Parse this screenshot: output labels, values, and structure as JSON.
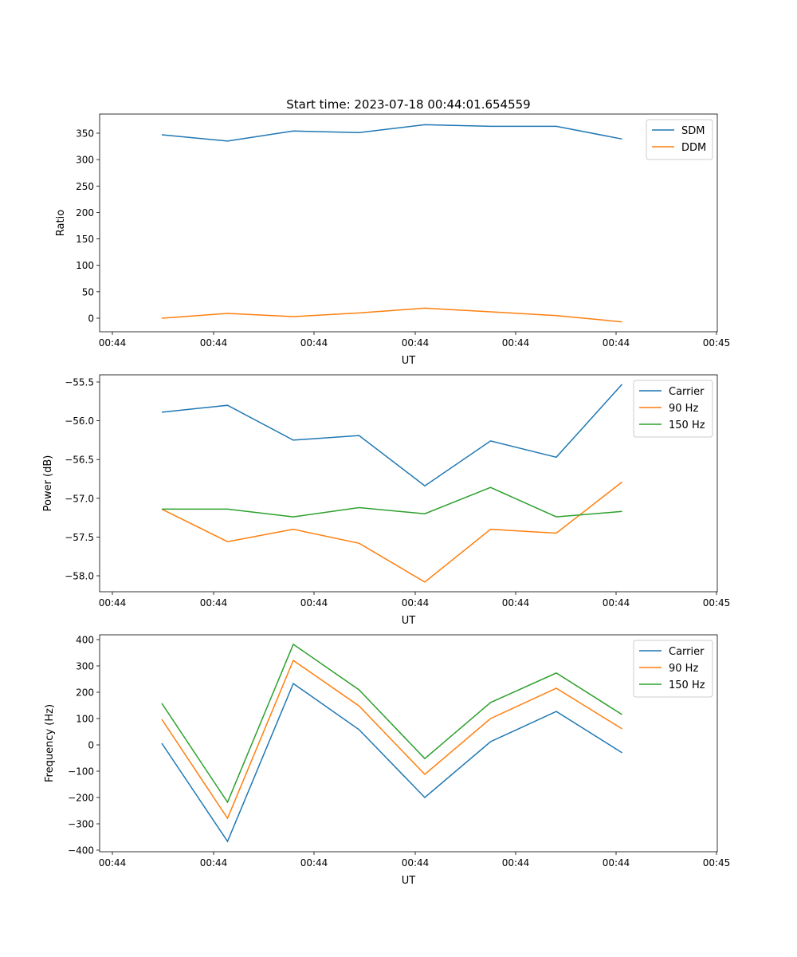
{
  "chart_data": [
    {
      "type": "line",
      "title": "Start time: 2023-07-18 00:44:01.654559",
      "xlabel": "UT",
      "ylabel": "Ratio",
      "x_tick_labels": [
        "00:44",
        "00:44",
        "00:44",
        "00:44",
        "00:44",
        "00:44",
        "00:45"
      ],
      "x": [
        1,
        2,
        3,
        4,
        5,
        6,
        7,
        8
      ],
      "xlim": [
        0.8,
        10.0
      ],
      "x_ticks": [
        1,
        2.5333,
        4.0667,
        5.6,
        7.1333,
        8.6667,
        10.2
      ],
      "ylim": [
        -27,
        385
      ],
      "y_ticks": [
        0,
        50,
        100,
        150,
        200,
        250,
        300,
        350
      ],
      "legend": "top-right",
      "series": [
        {
          "name": "SDM",
          "color": "#1f77b4",
          "values": [
            347,
            335,
            354,
            351,
            366,
            363,
            363,
            339
          ]
        },
        {
          "name": "DDM",
          "color": "#ff7f0e",
          "values": [
            0,
            9,
            3,
            10,
            19,
            12,
            5,
            -7
          ]
        }
      ]
    },
    {
      "type": "line",
      "title": "",
      "xlabel": "UT",
      "ylabel": "Power (dB)",
      "x_tick_labels": [
        "00:44",
        "00:44",
        "00:44",
        "00:44",
        "00:44",
        "00:44",
        "00:45"
      ],
      "x": [
        1,
        2,
        3,
        4,
        5,
        6,
        7,
        8
      ],
      "ylim": [
        -58.2,
        -55.42
      ],
      "y_ticks": [
        -58.0,
        -57.5,
        -57.0,
        -56.5,
        -56.0,
        -55.5
      ],
      "y_tick_labels": [
        "−58.0",
        "−57.5",
        "−57.0",
        "−56.5",
        "−56.0",
        "−55.5"
      ],
      "legend": "top-right",
      "series": [
        {
          "name": "Carrier",
          "color": "#1f77b4",
          "values": [
            -55.89,
            -55.8,
            -56.25,
            -56.19,
            -56.84,
            -56.26,
            -56.47,
            -55.53
          ]
        },
        {
          "name": "90 Hz",
          "color": "#ff7f0e",
          "values": [
            -57.14,
            -57.56,
            -57.4,
            -57.58,
            -58.08,
            -57.4,
            -57.45,
            -56.79
          ]
        },
        {
          "name": "150 Hz",
          "color": "#2ca02c",
          "values": [
            -57.14,
            -57.14,
            -57.24,
            -57.12,
            -57.2,
            -56.86,
            -57.24,
            -57.17
          ]
        }
      ]
    },
    {
      "type": "line",
      "title": "",
      "xlabel": "UT",
      "ylabel": "Frequency (Hz)",
      "x_tick_labels": [
        "00:44",
        "00:44",
        "00:44",
        "00:44",
        "00:44",
        "00:44",
        "00:45"
      ],
      "x": [
        1,
        2,
        3,
        4,
        5,
        6,
        7,
        8
      ],
      "ylim": [
        -405,
        415
      ],
      "y_ticks": [
        -400,
        -300,
        -200,
        -100,
        0,
        100,
        200,
        300,
        400
      ],
      "y_tick_labels": [
        "−400",
        "−300",
        "−200",
        "−100",
        "0",
        "100",
        "200",
        "300",
        "400"
      ],
      "legend": "top-right",
      "series": [
        {
          "name": "Carrier",
          "color": "#1f77b4",
          "values": [
            6,
            -367,
            233,
            58,
            -200,
            12,
            127,
            -30
          ]
        },
        {
          "name": "90 Hz",
          "color": "#ff7f0e",
          "values": [
            97,
            -279,
            321,
            148,
            -112,
            100,
            215,
            61
          ]
        },
        {
          "name": "150 Hz",
          "color": "#2ca02c",
          "values": [
            158,
            -218,
            382,
            209,
            -52,
            161,
            273,
            115
          ]
        }
      ]
    }
  ]
}
